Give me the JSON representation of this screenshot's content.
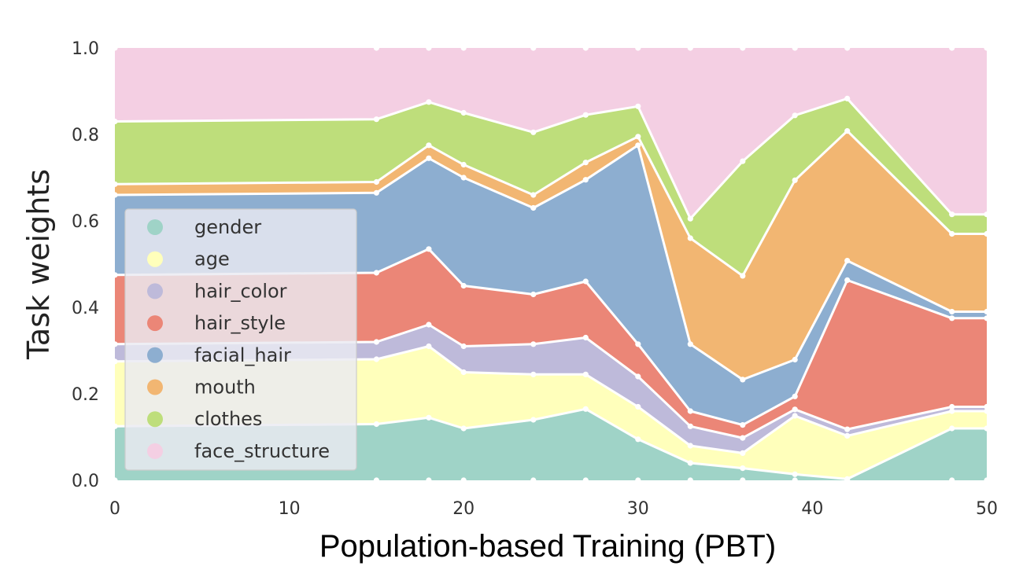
{
  "chart_data": {
    "type": "area",
    "stacked": true,
    "xlabel": "Population-based Training (PBT)",
    "ylabel": "Task weights",
    "xlim": [
      0,
      50
    ],
    "ylim": [
      0,
      1
    ],
    "xticks": [
      "0",
      "10",
      "20",
      "30",
      "40",
      "50"
    ],
    "yticks": [
      "0.0",
      "0.2",
      "0.4",
      "0.6",
      "0.8",
      "1.0"
    ],
    "grid": false,
    "legend_position": "left",
    "x": [
      0,
      15,
      18,
      20,
      24,
      27,
      30,
      33,
      36,
      39,
      42,
      48,
      50
    ],
    "series": [
      {
        "name": "gender",
        "color": "#9fd3c7",
        "values": [
          0.125,
          0.13,
          0.145,
          0.12,
          0.14,
          0.165,
          0.095,
          0.04,
          0.028,
          0.014,
          0.003,
          0.12,
          0.12
        ]
      },
      {
        "name": "age",
        "color": "#ffffbb",
        "values": [
          0.15,
          0.15,
          0.165,
          0.13,
          0.105,
          0.08,
          0.075,
          0.04,
          0.035,
          0.135,
          0.1,
          0.04,
          0.04
        ]
      },
      {
        "name": "hair_color",
        "color": "#bebada",
        "values": [
          0.04,
          0.04,
          0.05,
          0.06,
          0.07,
          0.085,
          0.07,
          0.045,
          0.035,
          0.015,
          0.015,
          0.01,
          0.01
        ]
      },
      {
        "name": "hair_style",
        "color": "#eb8677",
        "values": [
          0.16,
          0.16,
          0.175,
          0.14,
          0.115,
          0.13,
          0.075,
          0.035,
          0.03,
          0.03,
          0.345,
          0.205,
          0.205
        ]
      },
      {
        "name": "facial_hair",
        "color": "#8daed0",
        "values": [
          0.185,
          0.185,
          0.21,
          0.25,
          0.2,
          0.235,
          0.46,
          0.155,
          0.105,
          0.085,
          0.045,
          0.015,
          0.015
        ]
      },
      {
        "name": "mouth",
        "color": "#f2b672",
        "values": [
          0.025,
          0.025,
          0.03,
          0.03,
          0.03,
          0.04,
          0.02,
          0.245,
          0.24,
          0.415,
          0.3,
          0.18,
          0.18
        ]
      },
      {
        "name": "clothes",
        "color": "#bede7b",
        "values": [
          0.145,
          0.145,
          0.1,
          0.12,
          0.145,
          0.11,
          0.07,
          0.045,
          0.265,
          0.15,
          0.075,
          0.045,
          0.045
        ]
      },
      {
        "name": "face_structure",
        "color": "#f4cfe3",
        "values": [
          0.17,
          0.165,
          0.125,
          0.15,
          0.195,
          0.155,
          0.135,
          0.395,
          0.262,
          0.156,
          0.117,
          0.385,
          0.385
        ]
      }
    ]
  }
}
